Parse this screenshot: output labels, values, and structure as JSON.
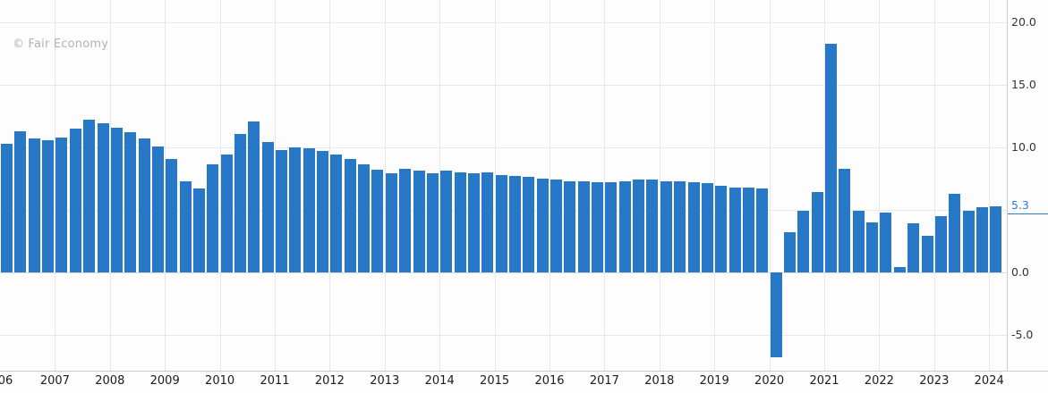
{
  "watermark": "© Fair Economy",
  "colors": {
    "bar": "#2878c8",
    "accent": "#2b7bd0",
    "grid": "#e7e7e7",
    "axis_line": "#cccccc",
    "x_label_text": "#1c1c1c",
    "y_label_text": "#333333",
    "background": "#fdfdfe",
    "watermark_text": "#b3b3b3"
  },
  "chart_data": {
    "type": "bar",
    "title": "",
    "frequency": "quarterly",
    "x_start_year": 2006,
    "bars_per_year": 4,
    "x_tick_labels": [
      "06",
      "2007",
      "2008",
      "2009",
      "2010",
      "2011",
      "2012",
      "2013",
      "2014",
      "2015",
      "2016",
      "2017",
      "2018",
      "2019",
      "2020",
      "2021",
      "2022",
      "2023",
      "2024"
    ],
    "y_axis_labels": [
      {
        "value": 20,
        "label": "20.0"
      },
      {
        "value": 15,
        "label": "15.0"
      },
      {
        "value": 10,
        "label": "10.0"
      },
      {
        "value": 0,
        "label": "0.0"
      },
      {
        "value": -5,
        "label": "-5.0"
      }
    ],
    "y_grid_values": [
      20,
      15,
      10,
      5,
      0,
      -5
    ],
    "ylim": [
      -7.9,
      21.8
    ],
    "grid": true,
    "legend": "none",
    "current_value": {
      "value": 5.3,
      "label": "5.3"
    },
    "values": [
      10.3,
      11.3,
      10.7,
      10.6,
      10.8,
      11.5,
      12.2,
      11.9,
      11.6,
      11.2,
      10.7,
      10.1,
      9.1,
      7.3,
      6.7,
      8.6,
      9.4,
      11.1,
      12.1,
      10.4,
      9.8,
      10.0,
      9.9,
      9.7,
      9.4,
      9.1,
      8.6,
      8.2,
      7.9,
      8.3,
      8.1,
      7.9,
      8.1,
      8.0,
      7.9,
      8.0,
      7.8,
      7.7,
      7.6,
      7.5,
      7.4,
      7.3,
      7.3,
      7.2,
      7.2,
      7.3,
      7.4,
      7.4,
      7.3,
      7.3,
      7.2,
      7.1,
      6.9,
      6.8,
      6.8,
      6.7,
      -6.8,
      3.2,
      4.9,
      6.4,
      18.3,
      8.3,
      4.9,
      4.0,
      4.8,
      0.4,
      3.9,
      2.9,
      4.5,
      6.3,
      4.9,
      5.2,
      5.3
    ]
  }
}
